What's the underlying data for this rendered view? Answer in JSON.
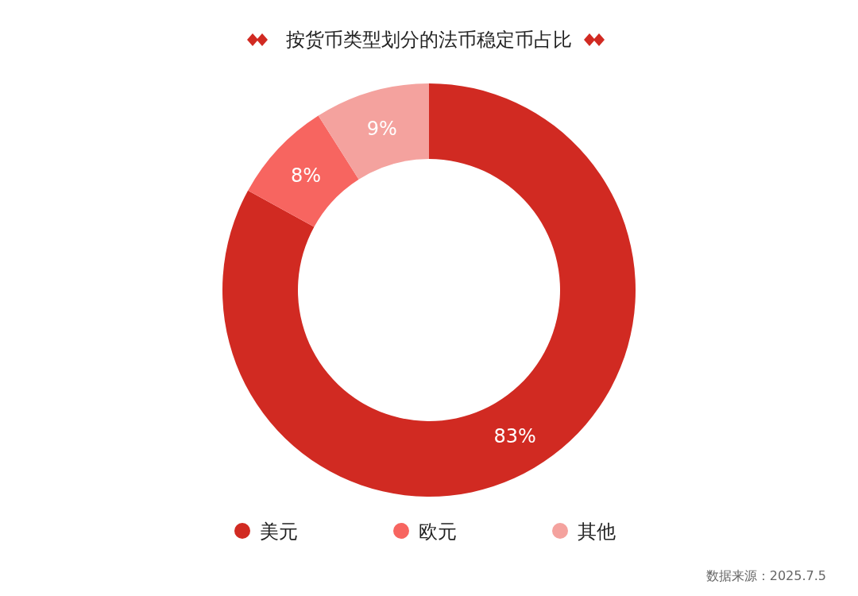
{
  "chart_data": {
    "type": "donut",
    "title": "按货币类型划分的法币稳定币占比",
    "categories": [
      "美元",
      "欧元",
      "其他"
    ],
    "values": [
      83,
      8,
      9
    ],
    "colors": [
      "#d12a22",
      "#f76560",
      "#f4a29e"
    ],
    "value_labels": [
      "83%",
      "8%",
      "9%"
    ],
    "legend": "bottom",
    "annotations": [
      "数据来源：2025.7.5"
    ]
  }
}
